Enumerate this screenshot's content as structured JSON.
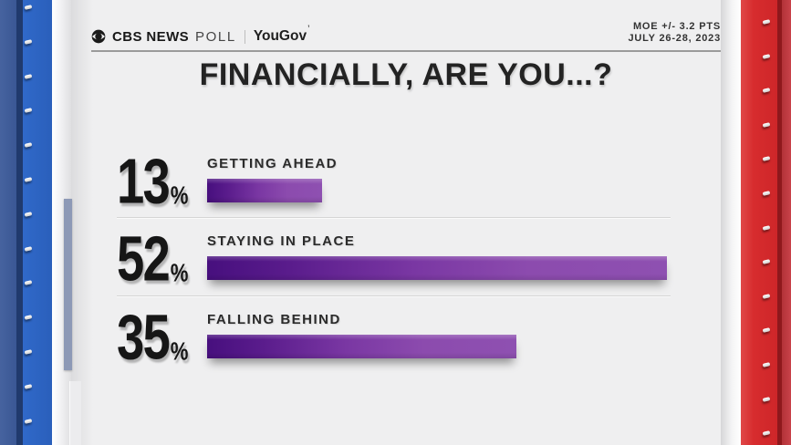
{
  "header": {
    "brand_cbs": "CBS NEWS",
    "brand_poll": "POLL",
    "brand_partner": "YouGov",
    "brand_partner_tick": "’",
    "moe": "MOE +/- 3.2 PTS",
    "date": "JULY 26-28, 2023"
  },
  "title": "FINANCIALLY, ARE YOU...?",
  "rows": [
    {
      "value": "13",
      "unit": "%",
      "label": "GETTING AHEAD"
    },
    {
      "value": "52",
      "unit": "%",
      "label": "STAYING IN PLACE"
    },
    {
      "value": "35",
      "unit": "%",
      "label": "FALLING BEHIND"
    }
  ],
  "chart_data": {
    "type": "bar",
    "orientation": "horizontal",
    "title": "FINANCIALLY, ARE YOU...?",
    "categories": [
      "GETTING AHEAD",
      "STAYING IN PLACE",
      "FALLING BEHIND"
    ],
    "values": [
      13,
      52,
      35
    ],
    "unit": "%",
    "value_labels_shown": true,
    "annotations": [
      "MOE +/- 3.2 PTS",
      "JULY 26-28, 2023"
    ],
    "source": "CBS NEWS POLL | YouGov",
    "legend": null,
    "grid": false,
    "bar_gradient": [
      "#470f7e",
      "#8e50b1"
    ]
  },
  "colors": {
    "background": "#efeff0",
    "bar_dark": "#470f7e",
    "bar_light": "#8e50b1",
    "left_panel_blue": "#2a63c3",
    "right_panel_red": "#d72c2e",
    "text": "#1d1d1d"
  }
}
